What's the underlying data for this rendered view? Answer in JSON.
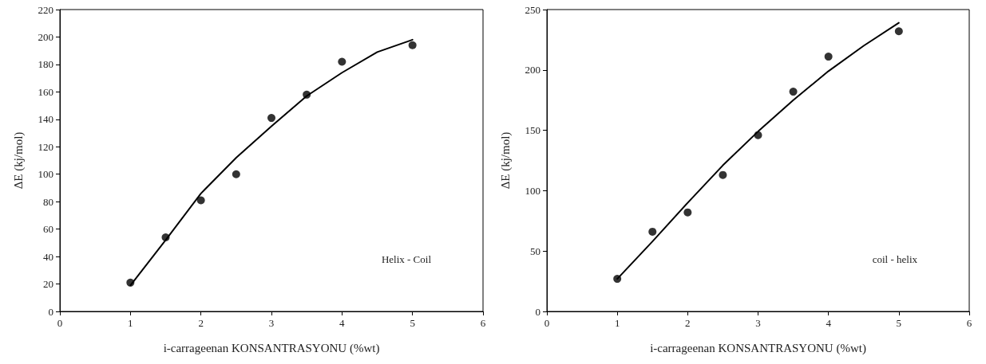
{
  "chart_data": [
    {
      "type": "scatter",
      "xlabel": "i-carrageenan KONSANTRASYONU (%wt)",
      "ylabel": "ΔE (kj/mol)",
      "annotations": [
        "Helix - Coil"
      ],
      "xlim": [
        0,
        6
      ],
      "xticks": [
        0,
        1,
        2,
        3,
        4,
        5,
        6
      ],
      "ylim": [
        0,
        220
      ],
      "yticks": [
        0,
        20,
        40,
        60,
        80,
        100,
        120,
        140,
        160,
        180,
        200,
        220
      ],
      "grid": false,
      "series": [
        {
          "color": "#000000",
          "marker": "circle",
          "x": [
            1,
            1.5,
            2,
            2.5,
            3,
            3.5,
            4,
            5
          ],
          "values": [
            21,
            54,
            81,
            100,
            141,
            158,
            182,
            194
          ]
        },
        {
          "type": "line",
          "color": "#000000",
          "marker": "none",
          "line_style": "solid",
          "x": [
            1,
            1.5,
            2,
            2.5,
            3,
            3.5,
            4,
            4.5,
            5
          ],
          "values": [
            19,
            52,
            86,
            112,
            135,
            157,
            174,
            189,
            198
          ]
        }
      ]
    },
    {
      "type": "scatter",
      "xlabel": "i-carrageenan KONSANTRASYONU (%wt)",
      "ylabel": "ΔE (kj/mol)",
      "annotations": [
        "coil - helix"
      ],
      "xlim": [
        0,
        6
      ],
      "xticks": [
        0,
        1,
        2,
        3,
        4,
        5,
        6
      ],
      "ylim": [
        0,
        250
      ],
      "yticks": [
        0,
        50,
        100,
        150,
        200,
        250
      ],
      "grid": false,
      "series": [
        {
          "color": "#000000",
          "marker": "circle",
          "x": [
            1,
            1.5,
            2,
            2.5,
            3,
            3.5,
            4,
            5
          ],
          "values": [
            27,
            66,
            82,
            113,
            146,
            182,
            211,
            232
          ]
        },
        {
          "type": "line",
          "color": "#000000",
          "marker": "none",
          "line_style": "solid",
          "x": [
            1,
            1.5,
            2,
            2.5,
            3,
            3.5,
            4,
            4.5,
            5
          ],
          "values": [
            27,
            58,
            90,
            121,
            149,
            175,
            199,
            220,
            239
          ]
        }
      ]
    }
  ]
}
